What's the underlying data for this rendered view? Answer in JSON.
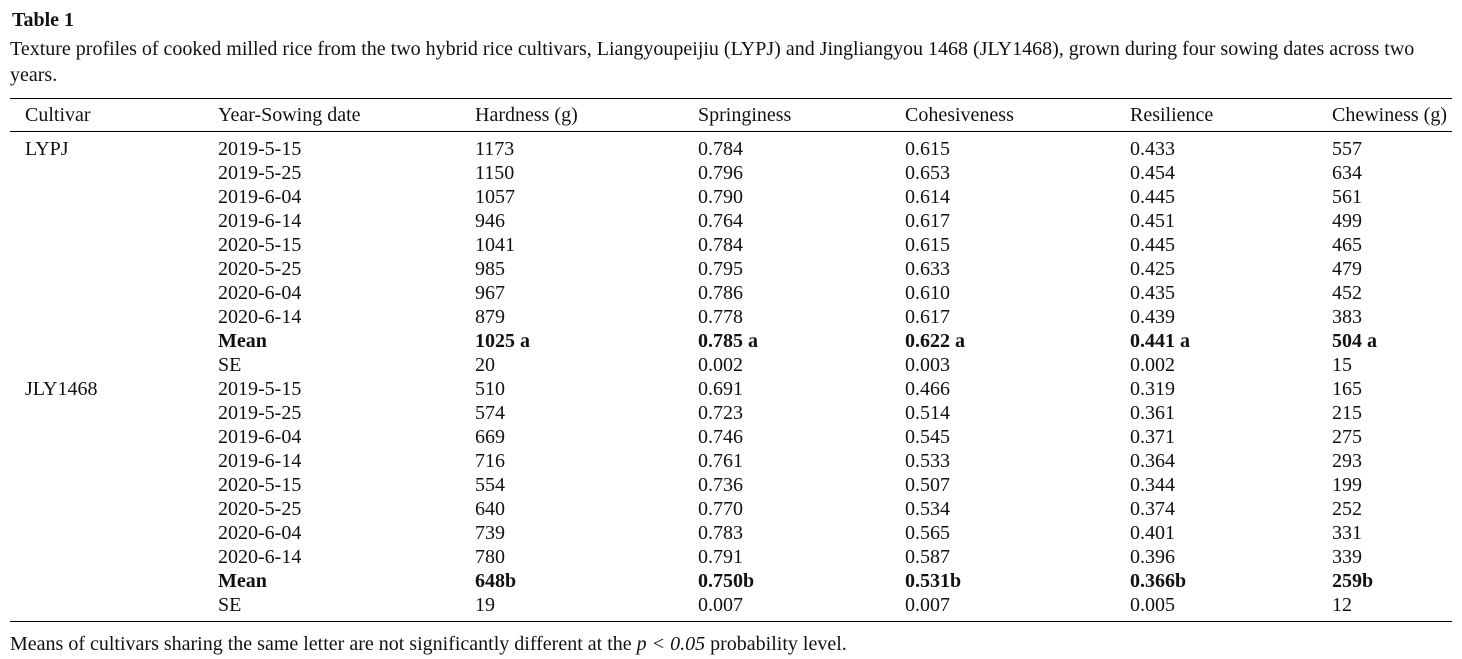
{
  "page": {
    "title": "Table 1",
    "caption": "Texture profiles of cooked milled rice from the two hybrid rice cultivars, Liangyoupeijiu (LYPJ) and Jingliangyou 1468 (JLY1468), grown during four sowing dates across two years.",
    "footnote": {
      "prefix": "Means of cultivars sharing the same letter are not significantly different at the ",
      "italic": "p < 0.05",
      "suffix": " probability level."
    }
  },
  "table": {
    "columns": [
      "Cultivar",
      "Year-Sowing date",
      "Hardness (g)",
      "Springiness",
      "Cohesiveness",
      "Resilience",
      "Chewiness (g)"
    ],
    "column_keys": [
      "hardness",
      "springiness",
      "cohesiveness",
      "resilience",
      "chewiness"
    ],
    "groups": [
      {
        "cultivar": "LYPJ",
        "rows": [
          {
            "label": "2019-5-15",
            "bold": false,
            "values": [
              "1173",
              "0.784",
              "0.615",
              "0.433",
              "557"
            ]
          },
          {
            "label": "2019-5-25",
            "bold": false,
            "values": [
              "1150",
              "0.796",
              "0.653",
              "0.454",
              "634"
            ]
          },
          {
            "label": "2019-6-04",
            "bold": false,
            "values": [
              "1057",
              "0.790",
              "0.614",
              "0.445",
              "561"
            ]
          },
          {
            "label": "2019-6-14",
            "bold": false,
            "values": [
              "946",
              "0.764",
              "0.617",
              "0.451",
              "499"
            ]
          },
          {
            "label": "2020-5-15",
            "bold": false,
            "values": [
              "1041",
              "0.784",
              "0.615",
              "0.445",
              "465"
            ]
          },
          {
            "label": "2020-5-25",
            "bold": false,
            "values": [
              "985",
              "0.795",
              "0.633",
              "0.425",
              "479"
            ]
          },
          {
            "label": "2020-6-04",
            "bold": false,
            "values": [
              "967",
              "0.786",
              "0.610",
              "0.435",
              "452"
            ]
          },
          {
            "label": "2020-6-14",
            "bold": false,
            "values": [
              "879",
              "0.778",
              "0.617",
              "0.439",
              "383"
            ]
          },
          {
            "label": "Mean",
            "bold": true,
            "values": [
              "1025 a",
              "0.785 a",
              "0.622 a",
              "0.441 a",
              "504 a"
            ]
          },
          {
            "label": "SE",
            "bold": false,
            "values": [
              "20",
              "0.002",
              "0.003",
              "0.002",
              "15"
            ]
          }
        ]
      },
      {
        "cultivar": "JLY1468",
        "rows": [
          {
            "label": "2019-5-15",
            "bold": false,
            "values": [
              "510",
              "0.691",
              "0.466",
              "0.319",
              "165"
            ]
          },
          {
            "label": "2019-5-25",
            "bold": false,
            "values": [
              "574",
              "0.723",
              "0.514",
              "0.361",
              "215"
            ]
          },
          {
            "label": "2019-6-04",
            "bold": false,
            "values": [
              "669",
              "0.746",
              "0.545",
              "0.371",
              "275"
            ]
          },
          {
            "label": "2019-6-14",
            "bold": false,
            "values": [
              "716",
              "0.761",
              "0.533",
              "0.364",
              "293"
            ]
          },
          {
            "label": "2020-5-15",
            "bold": false,
            "values": [
              "554",
              "0.736",
              "0.507",
              "0.344",
              "199"
            ]
          },
          {
            "label": "2020-5-25",
            "bold": false,
            "values": [
              "640",
              "0.770",
              "0.534",
              "0.374",
              "252"
            ]
          },
          {
            "label": "2020-6-04",
            "bold": false,
            "values": [
              "739",
              "0.783",
              "0.565",
              "0.401",
              "331"
            ]
          },
          {
            "label": "2020-6-14",
            "bold": false,
            "values": [
              "780",
              "0.791",
              "0.587",
              "0.396",
              "339"
            ]
          },
          {
            "label": "Mean",
            "bold": true,
            "values": [
              "648b",
              "0.750b",
              "0.531b",
              "0.366b",
              "259b"
            ]
          },
          {
            "label": "SE",
            "bold": false,
            "values": [
              "19",
              "0.007",
              "0.007",
              "0.005",
              "12"
            ]
          }
        ]
      }
    ]
  }
}
